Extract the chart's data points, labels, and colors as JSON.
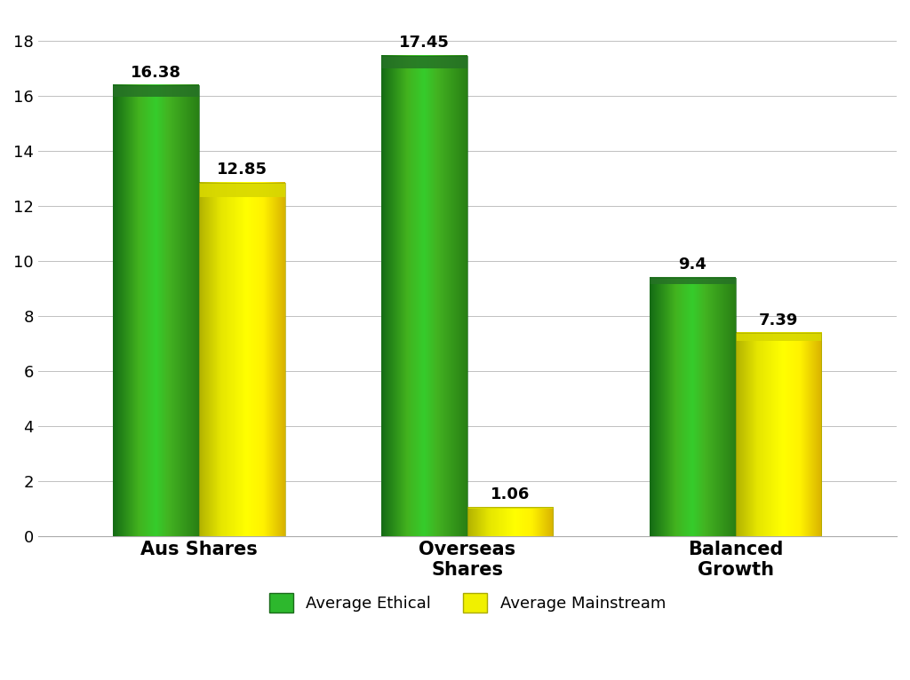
{
  "categories": [
    "Aus Shares",
    "Overseas\nShares",
    "Balanced\nGrowth"
  ],
  "ethical_values": [
    16.38,
    17.45,
    9.4
  ],
  "mainstream_values": [
    12.85,
    1.06,
    7.39
  ],
  "ethical_color_main": "#2db82d",
  "ethical_color_dark": "#1a6b1a",
  "ethical_color_light": "#3dcc3d",
  "mainstream_color_main": "#f0f000",
  "mainstream_color_dark": "#b8b800",
  "mainstream_color_light": "#ffff55",
  "ethical_label": "Average Ethical",
  "mainstream_label": "Average Mainstream",
  "ylim": [
    0,
    19
  ],
  "yticks": [
    0,
    2,
    4,
    6,
    8,
    10,
    12,
    14,
    16,
    18
  ],
  "bar_width": 0.32,
  "bar_gap": 0.0,
  "background_color": "#ffffff",
  "grid_color": "#c0c0c0",
  "label_fontsize": 15,
  "tick_fontsize": 13,
  "legend_fontsize": 13,
  "value_fontsize": 13
}
